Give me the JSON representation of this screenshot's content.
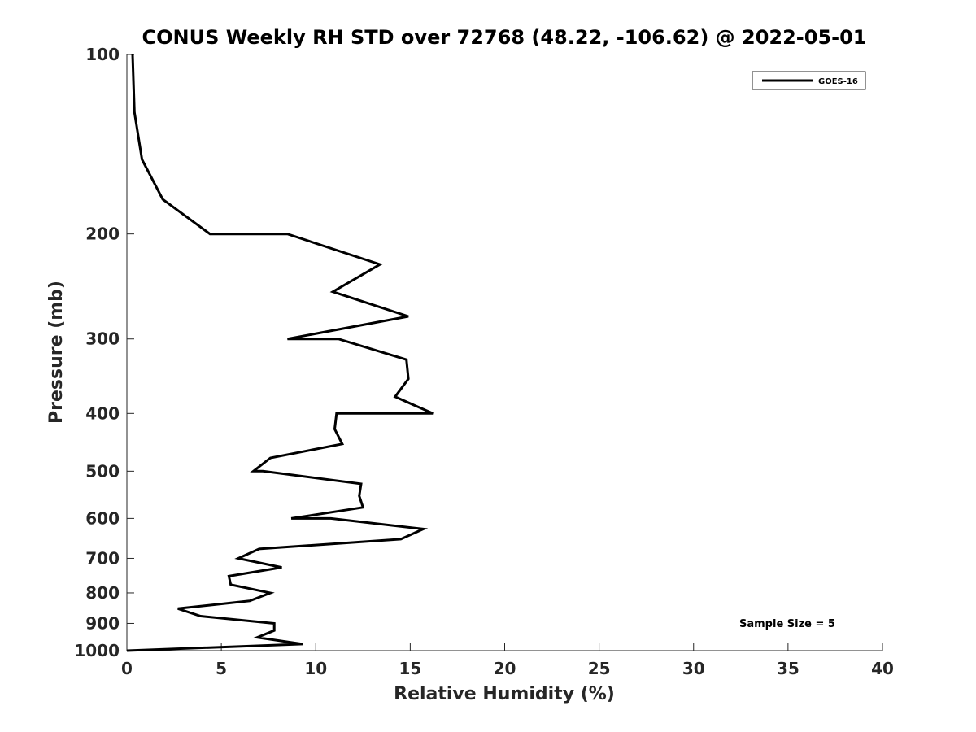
{
  "chart_data": {
    "type": "line",
    "title": "CONUS Weekly RH STD over 72768 (48.22, -106.62) @ 2022-05-01",
    "xlabel": "Relative Humidity (%)",
    "ylabel": "Pressure (mb)",
    "xlim": [
      0,
      40
    ],
    "ylim": [
      100,
      1000
    ],
    "yscale": "log",
    "y_reversed": true,
    "x_ticks": [
      "0",
      "5",
      "10",
      "15",
      "20",
      "25",
      "30",
      "35",
      "40"
    ],
    "y_ticks": [
      "100",
      "200",
      "300",
      "400",
      "500",
      "600",
      "700",
      "800",
      "900",
      "1000"
    ],
    "grid": false,
    "legend_position": "top-right",
    "annotation": "Sample Size = 5",
    "series": [
      {
        "name": "GOES-16",
        "color": "#000000",
        "points": [
          [
            0.3,
            100
          ],
          [
            0.4,
            125
          ],
          [
            0.8,
            150
          ],
          [
            1.9,
            175
          ],
          [
            4.4,
            200
          ],
          [
            8.5,
            200
          ],
          [
            13.4,
            225
          ],
          [
            10.9,
            250
          ],
          [
            14.9,
            275
          ],
          [
            8.5,
            300
          ],
          [
            11.2,
            300
          ],
          [
            14.8,
            325
          ],
          [
            14.9,
            350
          ],
          [
            14.2,
            375
          ],
          [
            16.2,
            400
          ],
          [
            11.1,
            400
          ],
          [
            11.0,
            425
          ],
          [
            11.4,
            450
          ],
          [
            7.6,
            475
          ],
          [
            6.7,
            500
          ],
          [
            7.2,
            500
          ],
          [
            12.4,
            525
          ],
          [
            12.3,
            550
          ],
          [
            12.5,
            575
          ],
          [
            8.7,
            600
          ],
          [
            10.8,
            600
          ],
          [
            15.7,
            625
          ],
          [
            14.5,
            650
          ],
          [
            7.0,
            675
          ],
          [
            5.9,
            700
          ],
          [
            8.2,
            725
          ],
          [
            5.4,
            750
          ],
          [
            5.5,
            775
          ],
          [
            7.6,
            800
          ],
          [
            6.5,
            825
          ],
          [
            2.7,
            850
          ],
          [
            3.9,
            875
          ],
          [
            7.8,
            900
          ],
          [
            7.8,
            925
          ],
          [
            6.9,
            950
          ],
          [
            9.3,
            975
          ],
          [
            0,
            1000
          ]
        ]
      }
    ]
  }
}
